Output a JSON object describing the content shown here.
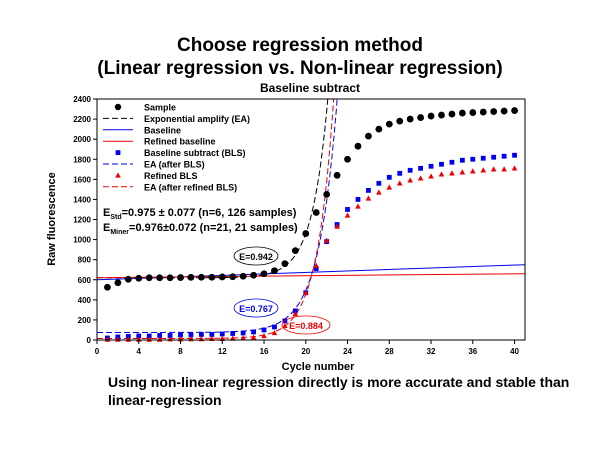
{
  "page": {
    "title_line1": "Choose regression method",
    "title_line2": "(Linear regression vs. Non-linear regression)",
    "caption": "Using non-linear regression directly is more accurate and stable than linear-regression"
  },
  "chart_data": {
    "type": "scatter",
    "title": "Baseline subtract",
    "xlabel": "Cycle number",
    "ylabel": "Raw fluorescence",
    "xlim": [
      0,
      41
    ],
    "ylim": [
      0,
      2400
    ],
    "xticks": [
      0,
      4,
      8,
      12,
      16,
      20,
      24,
      28,
      32,
      36,
      40
    ],
    "yticks": [
      0,
      200,
      400,
      600,
      800,
      1000,
      1200,
      1400,
      1600,
      1800,
      2000,
      2200,
      2400
    ],
    "grid": false,
    "legend_position": "top-left",
    "legend": [
      "Sample",
      "Exponential amplify (EA)",
      "Baseline",
      "Refined baseline",
      "Baseline subtract (BLS)",
      "EA (after BLS)",
      "Refined BLS",
      "EA (after refined BLS)"
    ],
    "annotations": {
      "e_std_prefix": "E",
      "e_std_sub": "Std",
      "e_std_text": "=0.975 ± 0.077 (n=6, 126 samples)",
      "e_miner_prefix": "E",
      "e_miner_sub": "Miner",
      "e_miner_text": "=0.976±0.072 (n=21, 21 samples)",
      "e1": "E=0.942",
      "e2": "E=0.767",
      "e3": "E=0.884"
    },
    "colors": {
      "sample": "#000000",
      "bls": "#0000ee",
      "refined": "#ee0000"
    },
    "x": [
      1,
      2,
      3,
      4,
      5,
      6,
      7,
      8,
      9,
      10,
      11,
      12,
      13,
      14,
      15,
      16,
      17,
      18,
      19,
      20,
      21,
      22,
      23,
      24,
      25,
      26,
      27,
      28,
      29,
      30,
      31,
      32,
      33,
      34,
      35,
      36,
      37,
      38,
      39,
      40
    ],
    "series": [
      {
        "name": "Sample",
        "marker": "circle",
        "values": [
          525,
          570,
          605,
          615,
          620,
          620,
          620,
          622,
          624,
          625,
          625,
          628,
          630,
          635,
          645,
          660,
          690,
          760,
          890,
          1060,
          1270,
          1450,
          1640,
          1800,
          1930,
          2030,
          2100,
          2150,
          2180,
          2200,
          2215,
          2230,
          2240,
          2250,
          2260,
          2265,
          2270,
          2275,
          2280,
          2285
        ]
      },
      {
        "name": "Baseline subtract (BLS)",
        "marker": "square",
        "values": [
          20,
          30,
          35,
          40,
          40,
          45,
          45,
          50,
          50,
          55,
          55,
          60,
          65,
          70,
          80,
          100,
          130,
          190,
          290,
          470,
          710,
          980,
          1150,
          1300,
          1400,
          1490,
          1560,
          1620,
          1660,
          1690,
          1710,
          1730,
          1750,
          1770,
          1790,
          1800,
          1810,
          1820,
          1830,
          1840
        ]
      },
      {
        "name": "Refined BLS",
        "marker": "triangle",
        "values": [
          5,
          5,
          5,
          5,
          5,
          5,
          8,
          8,
          10,
          10,
          12,
          12,
          15,
          20,
          25,
          40,
          70,
          140,
          260,
          470,
          740,
          990,
          1130,
          1240,
          1330,
          1410,
          1470,
          1520,
          1560,
          1590,
          1610,
          1630,
          1650,
          1660,
          1670,
          1680,
          1690,
          1700,
          1700,
          1710
        ]
      }
    ],
    "lines": [
      {
        "name": "Exponential amplify (EA)",
        "style": "dashed",
        "color": "#000000",
        "eff": 0.942,
        "offset": 620,
        "c20": 440
      },
      {
        "name": "Baseline",
        "style": "solid",
        "color": "#0000ee",
        "points": [
          [
            0,
            600
          ],
          [
            41,
            750
          ]
        ]
      },
      {
        "name": "Refined baseline",
        "style": "solid",
        "color": "#ee0000",
        "points": [
          [
            0,
            620
          ],
          [
            41,
            660
          ]
        ]
      },
      {
        "name": "EA (after BLS)",
        "style": "dashed",
        "color": "#0000ee",
        "eff": 0.767,
        "offset": 75,
        "c20": 420
      },
      {
        "name": "EA (after refined BLS)",
        "style": "dashed",
        "color": "#ee0000",
        "eff": 0.884,
        "offset": 15,
        "c20": 440
      }
    ]
  }
}
